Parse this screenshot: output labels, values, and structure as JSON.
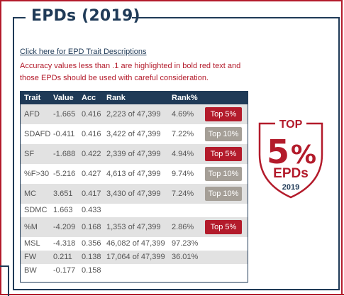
{
  "header": {
    "title": "EPDs (2019)"
  },
  "link_text": "Click here for EPD Trait Descriptions",
  "note": "Accuracy values less than .1 are highlighted in bold red text and those EPDs should be used with careful consideration.",
  "colors": {
    "navy": "#1f3a57",
    "red": "#b31b2b",
    "gray_badge": "#a59f97",
    "row_shade": "#e2e2e2"
  },
  "table": {
    "headers": [
      "Trait",
      "Value",
      "Acc",
      "Rank",
      "Rank%"
    ],
    "rows": [
      {
        "trait": "AFD",
        "value": "-1.665",
        "acc": "0.416",
        "rank": "2,223 of 47,399",
        "rank_pct": "4.69%",
        "badge": "Top 5%"
      },
      {
        "trait": "SDAFD",
        "value": "-0.411",
        "acc": "0.416",
        "rank": "3,422 of 47,399",
        "rank_pct": "7.22%",
        "badge": "Top 10%"
      },
      {
        "trait": "SF",
        "value": "-1.688",
        "acc": "0.422",
        "rank": "2,339 of 47,399",
        "rank_pct": "4.94%",
        "badge": "Top 5%"
      },
      {
        "trait": "%F>30",
        "value": "-5.216",
        "acc": "0.427",
        "rank": "4,613 of 47,399",
        "rank_pct": "9.74%",
        "badge": "Top 10%"
      },
      {
        "trait": "MC",
        "value": "3.651",
        "acc": "0.417",
        "rank": "3,430 of 47,399",
        "rank_pct": "7.24%",
        "badge": "Top 10%"
      },
      {
        "trait": "SDMC",
        "value": "1.663",
        "acc": "0.433",
        "rank": "",
        "rank_pct": "",
        "badge": ""
      },
      {
        "trait": "%M",
        "value": "-4.209",
        "acc": "0.168",
        "rank": "1,353 of 47,399",
        "rank_pct": "2.86%",
        "badge": "Top 5%"
      },
      {
        "trait": "MSL",
        "value": "-4.318",
        "acc": "0.356",
        "rank": "46,082 of 47,399",
        "rank_pct": "97.23%",
        "badge": ""
      },
      {
        "trait": "FW",
        "value": "0.211",
        "acc": "0.138",
        "rank": "17,064 of 47,399",
        "rank_pct": "36.01%",
        "badge": ""
      },
      {
        "trait": "BW",
        "value": "-0.177",
        "acc": "0.158",
        "rank": "",
        "rank_pct": "",
        "badge": ""
      }
    ]
  },
  "logo": {
    "top": "TOP",
    "number": "5",
    "symbol": "%",
    "label": "EPDs",
    "year": "2019"
  }
}
